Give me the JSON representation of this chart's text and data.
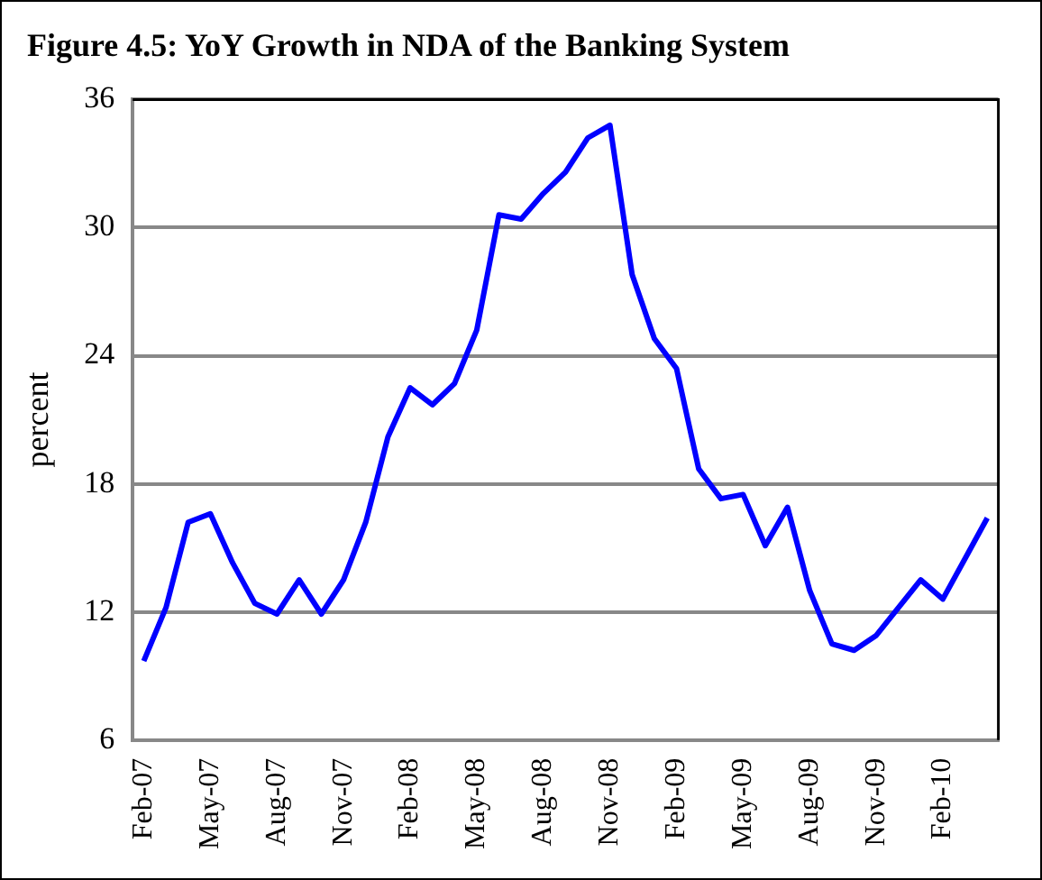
{
  "chart_data": {
    "type": "line",
    "title": "Figure 4.5: YoY Growth in NDA of the Banking System",
    "ylabel": "percent",
    "categories": [
      "Feb-07",
      null,
      null,
      "May-07",
      null,
      null,
      "Aug-07",
      null,
      null,
      "Nov-07",
      null,
      null,
      "Feb-08",
      null,
      null,
      "May-08",
      null,
      null,
      "Aug-08",
      null,
      null,
      "Nov-08",
      null,
      null,
      "Feb-09",
      null,
      null,
      "May-09",
      null,
      null,
      "Aug-09",
      null,
      null,
      "Nov-09",
      null,
      null,
      "Feb-10",
      null,
      null
    ],
    "series": [
      {
        "color": "#0000ff",
        "values": [
          9.7,
          12.2,
          16.2,
          16.6,
          14.3,
          12.4,
          11.9,
          13.5,
          11.9,
          13.5,
          16.2,
          20.2,
          22.5,
          21.7,
          22.7,
          25.2,
          30.6,
          30.4,
          31.6,
          32.6,
          34.2,
          34.8,
          27.8,
          24.8,
          23.4,
          18.7,
          17.3,
          17.5,
          15.1,
          16.9,
          13.0,
          10.5,
          10.2,
          10.9,
          12.2,
          13.5,
          12.6,
          14.5,
          16.4
        ]
      }
    ],
    "ylim": [
      6,
      36
    ],
    "yticks": [
      6,
      12,
      18,
      24,
      30,
      36
    ],
    "grid": "y",
    "legend": false,
    "marker": "none",
    "line_style": "solid"
  }
}
